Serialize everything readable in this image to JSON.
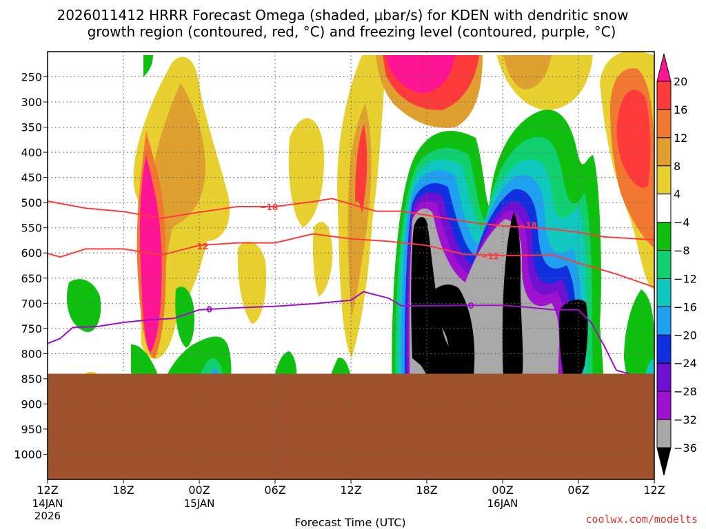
{
  "chart_data": {
    "type": "heatmap",
    "title_line1": "2026011412 HRRR Forecast Omega (shaded, μbar/s) for KDEN with dendritic snow",
    "title_line2": "growth region (contoured, red, °C) and freezing level (contoured, purple, °C)",
    "xlabel": "Forecast Time (UTC)",
    "ylabel": "",
    "credit": "coolwx.com/modelts",
    "x_ticks": [
      {
        "hour": 0,
        "label": "12Z",
        "date": "14JAN",
        "year": "2026"
      },
      {
        "hour": 6,
        "label": "18Z",
        "date": "",
        "year": ""
      },
      {
        "hour": 12,
        "label": "00Z",
        "date": "15JAN",
        "year": ""
      },
      {
        "hour": 18,
        "label": "06Z",
        "date": "",
        "year": ""
      },
      {
        "hour": 24,
        "label": "12Z",
        "date": "",
        "year": ""
      },
      {
        "hour": 30,
        "label": "18Z",
        "date": "",
        "year": ""
      },
      {
        "hour": 36,
        "label": "00Z",
        "date": "16JAN",
        "year": ""
      },
      {
        "hour": 42,
        "label": "06Z",
        "date": "",
        "year": ""
      },
      {
        "hour": 48,
        "label": "12Z",
        "date": "",
        "year": ""
      }
    ],
    "y_ticks": [
      250,
      300,
      350,
      400,
      450,
      500,
      550,
      600,
      650,
      700,
      750,
      800,
      850,
      900,
      950,
      1000
    ],
    "y_range": [
      200,
      1050
    ],
    "x_range": [
      0,
      48
    ],
    "ground_level_mb": 840,
    "colorbar": {
      "labels": [
        "20",
        "16",
        "12",
        "8",
        "4",
        "−4",
        "−8",
        "−12",
        "−16",
        "−20",
        "−24",
        "−28",
        "−32",
        "−36"
      ],
      "colors": [
        "#ff1493",
        "#ff3a3a",
        "#f07830",
        "#e0a030",
        "#e8d030",
        "#ffffff",
        "#10c010",
        "#10d070",
        "#10c8c0",
        "#20a0f0",
        "#1030e0",
        "#7010d0",
        "#a010d0",
        "#a8a8a8",
        "#000000"
      ]
    },
    "contours": {
      "minus18_label": "−18",
      "minus12_label": "−12",
      "freezing_label": "0",
      "minus18": [
        [
          0,
          497
        ],
        [
          3,
          511
        ],
        [
          6,
          518
        ],
        [
          9,
          531
        ],
        [
          12,
          519
        ],
        [
          15,
          508
        ],
        [
          18,
          508
        ],
        [
          21,
          498
        ],
        [
          22.5,
          492
        ],
        [
          24,
          503
        ],
        [
          26,
          517
        ],
        [
          28,
          517
        ],
        [
          30,
          525
        ],
        [
          34,
          541
        ],
        [
          36,
          546
        ],
        [
          40,
          553
        ],
        [
          42,
          559
        ],
        [
          44,
          568
        ],
        [
          48,
          574
        ]
      ],
      "minus12": [
        [
          0,
          601
        ],
        [
          1,
          608
        ],
        [
          3,
          592
        ],
        [
          6,
          592
        ],
        [
          9,
          604
        ],
        [
          12,
          585
        ],
        [
          15,
          580
        ],
        [
          18,
          580
        ],
        [
          21,
          562
        ],
        [
          24,
          572
        ],
        [
          27,
          577
        ],
        [
          30,
          585
        ],
        [
          33,
          603
        ],
        [
          36,
          605
        ],
        [
          40,
          604
        ],
        [
          42,
          620
        ],
        [
          45,
          642
        ],
        [
          48,
          668
        ]
      ],
      "freezing": [
        [
          0,
          780
        ],
        [
          1,
          770
        ],
        [
          2,
          748
        ],
        [
          4,
          746
        ],
        [
          6,
          738
        ],
        [
          8,
          733
        ],
        [
          10,
          730
        ],
        [
          12,
          713
        ],
        [
          15,
          709
        ],
        [
          18,
          706
        ],
        [
          21,
          701
        ],
        [
          24,
          694
        ],
        [
          25,
          677
        ],
        [
          27,
          690
        ],
        [
          28,
          705
        ],
        [
          30,
          705
        ],
        [
          33,
          704
        ],
        [
          36,
          704
        ],
        [
          38,
          708
        ],
        [
          40,
          713
        ],
        [
          42,
          713
        ],
        [
          43,
          738
        ],
        [
          44,
          783
        ],
        [
          45,
          833
        ],
        [
          46,
          840
        ]
      ]
    }
  }
}
